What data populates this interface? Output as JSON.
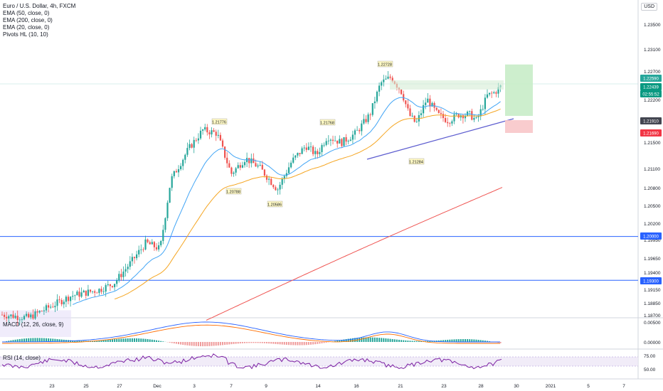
{
  "symbol": {
    "title": "Euro / U.S. Dollar, 4h, FXCM",
    "indicators": [
      "EMA (50, close, 0)",
      "EMA (200, close, 0)",
      "EMA (20, close, 0)",
      "Pivots HL (10, 10)"
    ]
  },
  "currency_button": "USD",
  "macd_label": "MACD (12, 26, close, 9)",
  "rsi_label": "RSI (14, close)",
  "price_axis": {
    "ticks": [
      "1.23500",
      "1.23100",
      "1.22700",
      "1.22200",
      "1.21800",
      "1.21500",
      "1.21100",
      "1.20800",
      "1.20500",
      "1.20200",
      "1.19950",
      "1.19650",
      "1.19400",
      "1.19150",
      "1.18850",
      "1.18700"
    ],
    "badges": [
      {
        "text": "1.22590",
        "color": "#26a69a"
      },
      {
        "text": "1.22439",
        "color": "#089981"
      },
      {
        "text": "02:55:52",
        "color": "#089981"
      },
      {
        "text": "1.21910",
        "color": "#434651"
      },
      {
        "text": "1.21690",
        "color": "#f23645"
      },
      {
        "text": "1.20000",
        "color": "#2962ff"
      },
      {
        "text": "1.19300",
        "color": "#2962ff"
      }
    ]
  },
  "macd_axis": {
    "ticks": [
      "0.00500",
      "0.00000"
    ]
  },
  "rsi_axis": {
    "ticks": [
      "75.00",
      "50.00"
    ]
  },
  "time_axis": {
    "labels": [
      "23",
      "25",
      "27",
      "Dec",
      "3",
      "7",
      "9",
      "14",
      "16",
      "21",
      "23",
      "28",
      "30",
      "2021",
      "5",
      "7"
    ]
  },
  "pivots": [
    {
      "text": "1.21776",
      "type": "high"
    },
    {
      "text": "1.20788",
      "type": "low"
    },
    {
      "text": "1.20586",
      "type": "low"
    },
    {
      "text": "1.21768",
      "type": "high"
    },
    {
      "text": "1.22728",
      "type": "high"
    },
    {
      "text": "1.21284",
      "type": "low"
    }
  ],
  "colors": {
    "up": "#26a69a",
    "down": "#ef5350",
    "ema20": "#42a5f5",
    "ema50": "#f5a623",
    "ema200": "#ef5350",
    "trendline": "#5c5ccf",
    "hline": "#2962ff",
    "profit": "#c8ecc8",
    "loss": "#f8c6c9",
    "rsi": "#7b1fa2"
  },
  "chart_data": {
    "type": "candlestick",
    "y_range": [
      1.187,
      1.2378
    ],
    "horizontal_lines": [
      1.2,
      1.193
    ],
    "position": {
      "entry": 1.22439,
      "target": 1.2259,
      "stop": 1.2169,
      "current": 1.2191
    }
  }
}
